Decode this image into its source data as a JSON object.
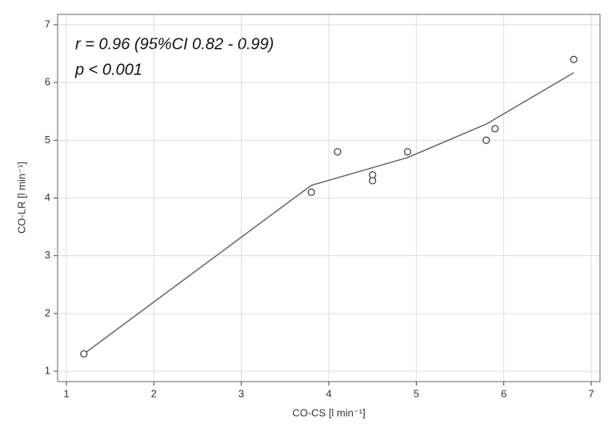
{
  "chart_data": {
    "type": "scatter",
    "x_label": "CO-CS [l min⁻¹]",
    "y_label": "CO-LR [l min⁻¹]",
    "annotations": [
      "r = 0.96 (95%CI 0.82 - 0.99)",
      "p < 0.001"
    ],
    "x": [
      1.2,
      3.8,
      4.1,
      4.5,
      4.5,
      4.9,
      5.8,
      5.9,
      6.8
    ],
    "values": [
      1.3,
      4.1,
      4.8,
      4.4,
      4.3,
      4.8,
      5.0,
      5.2,
      6.4
    ],
    "color": "#444444",
    "fit_line": {
      "x": [
        1.2,
        3.8,
        4.9,
        5.8,
        6.8
      ],
      "values": [
        1.3,
        4.22,
        4.7,
        5.28,
        6.17
      ],
      "color": "#666666"
    },
    "xlim": [
      0.9,
      7.1
    ],
    "ylim": [
      0.82,
      7.18
    ],
    "xticks": [
      1,
      2,
      3,
      4,
      5,
      6,
      7
    ],
    "yticks": [
      1,
      2,
      3,
      4,
      5,
      6,
      7
    ],
    "grid": true
  }
}
